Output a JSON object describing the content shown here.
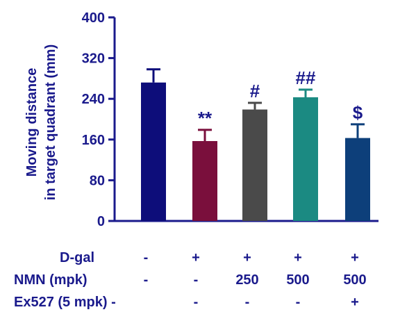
{
  "chart_data": {
    "type": "bar",
    "ylabel_lines": [
      "Moving distance",
      "in target quadrant (mm)"
    ],
    "xlabel": "",
    "ylim": [
      0,
      400
    ],
    "yticks": [
      0,
      80,
      160,
      240,
      320,
      400
    ],
    "grid": false,
    "axis_color": "#1a1a8c",
    "label_color": "#1a1a8c",
    "bars": [
      {
        "value": 272,
        "error": 26,
        "color": "#0d0d7a",
        "annotation": ""
      },
      {
        "value": 157,
        "error": 22,
        "color": "#7a0f3c",
        "annotation": "**"
      },
      {
        "value": 219,
        "error": 13,
        "color": "#4a4a4a",
        "annotation": "#"
      },
      {
        "value": 243,
        "error": 15,
        "color": "#1b8a82",
        "annotation": "##"
      },
      {
        "value": 163,
        "error": 27,
        "color": "#0d3f7a",
        "annotation": "$"
      }
    ],
    "treatment_table": [
      {
        "label": "D-gal",
        "values": [
          "-",
          "+",
          "+",
          "+",
          "+"
        ]
      },
      {
        "label": "NMN (mpk)",
        "values": [
          "-",
          "-",
          "250",
          "500",
          "500"
        ]
      },
      {
        "label": "Ex527 (5 mpk) -",
        "values": [
          "",
          "-",
          "-",
          "-",
          "+"
        ]
      }
    ]
  }
}
